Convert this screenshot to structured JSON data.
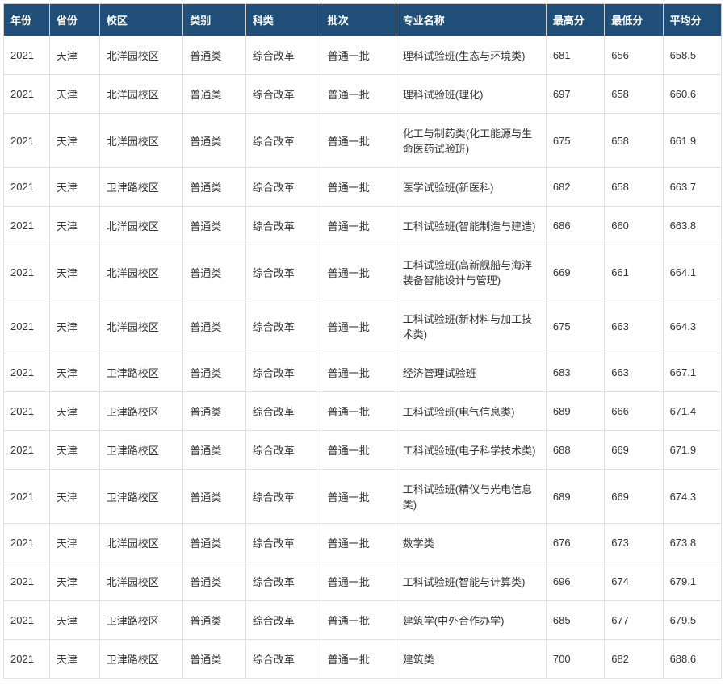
{
  "table": {
    "header_bg_color": "#1f4e79",
    "header_text_color": "#ffffff",
    "cell_bg_color": "#ffffff",
    "cell_text_color": "#333333",
    "border_color": "#e0e0e0",
    "header_font_size": 13,
    "cell_font_size": 13,
    "columns": [
      {
        "key": "year",
        "label": "年份",
        "width": 55
      },
      {
        "key": "province",
        "label": "省份",
        "width": 60
      },
      {
        "key": "campus",
        "label": "校区",
        "width": 100
      },
      {
        "key": "category",
        "label": "类别",
        "width": 75
      },
      {
        "key": "subject",
        "label": "科类",
        "width": 90
      },
      {
        "key": "batch",
        "label": "批次",
        "width": 90
      },
      {
        "key": "major",
        "label": "专业名称",
        "width": 180
      },
      {
        "key": "high",
        "label": "最高分",
        "width": 70
      },
      {
        "key": "low",
        "label": "最低分",
        "width": 70
      },
      {
        "key": "avg",
        "label": "平均分",
        "width": 70
      }
    ],
    "rows": [
      {
        "year": "2021",
        "province": "天津",
        "campus": "北洋园校区",
        "category": "普通类",
        "subject": "综合改革",
        "batch": "普通一批",
        "major": "理科试验班(生态与环境类)",
        "high": "681",
        "low": "656",
        "avg": "658.5"
      },
      {
        "year": "2021",
        "province": "天津",
        "campus": "北洋园校区",
        "category": "普通类",
        "subject": "综合改革",
        "batch": "普通一批",
        "major": "理科试验班(理化)",
        "high": "697",
        "low": "658",
        "avg": "660.6"
      },
      {
        "year": "2021",
        "province": "天津",
        "campus": "北洋园校区",
        "category": "普通类",
        "subject": "综合改革",
        "batch": "普通一批",
        "major": "化工与制药类(化工能源与生命医药试验班)",
        "high": "675",
        "low": "658",
        "avg": "661.9"
      },
      {
        "year": "2021",
        "province": "天津",
        "campus": "卫津路校区",
        "category": "普通类",
        "subject": "综合改革",
        "batch": "普通一批",
        "major": "医学试验班(新医科)",
        "high": "682",
        "low": "658",
        "avg": "663.7"
      },
      {
        "year": "2021",
        "province": "天津",
        "campus": "北洋园校区",
        "category": "普通类",
        "subject": "综合改革",
        "batch": "普通一批",
        "major": "工科试验班(智能制造与建造)",
        "high": "686",
        "low": "660",
        "avg": "663.8"
      },
      {
        "year": "2021",
        "province": "天津",
        "campus": "北洋园校区",
        "category": "普通类",
        "subject": "综合改革",
        "batch": "普通一批",
        "major": "工科试验班(高新舰船与海洋装备智能设计与管理)",
        "high": "669",
        "low": "661",
        "avg": "664.1"
      },
      {
        "year": "2021",
        "province": "天津",
        "campus": "北洋园校区",
        "category": "普通类",
        "subject": "综合改革",
        "batch": "普通一批",
        "major": "工科试验班(新材料与加工技术类)",
        "high": "675",
        "low": "663",
        "avg": "664.3"
      },
      {
        "year": "2021",
        "province": "天津",
        "campus": "卫津路校区",
        "category": "普通类",
        "subject": "综合改革",
        "batch": "普通一批",
        "major": "经济管理试验班",
        "high": "683",
        "low": "663",
        "avg": "667.1"
      },
      {
        "year": "2021",
        "province": "天津",
        "campus": "卫津路校区",
        "category": "普通类",
        "subject": "综合改革",
        "batch": "普通一批",
        "major": "工科试验班(电气信息类)",
        "high": "689",
        "low": "666",
        "avg": "671.4"
      },
      {
        "year": "2021",
        "province": "天津",
        "campus": "卫津路校区",
        "category": "普通类",
        "subject": "综合改革",
        "batch": "普通一批",
        "major": "工科试验班(电子科学技术类)",
        "high": "688",
        "low": "669",
        "avg": "671.9"
      },
      {
        "year": "2021",
        "province": "天津",
        "campus": "卫津路校区",
        "category": "普通类",
        "subject": "综合改革",
        "batch": "普通一批",
        "major": "工科试验班(精仪与光电信息类)",
        "high": "689",
        "low": "669",
        "avg": "674.3"
      },
      {
        "year": "2021",
        "province": "天津",
        "campus": "北洋园校区",
        "category": "普通类",
        "subject": "综合改革",
        "batch": "普通一批",
        "major": "数学类",
        "high": "676",
        "low": "673",
        "avg": "673.8"
      },
      {
        "year": "2021",
        "province": "天津",
        "campus": "北洋园校区",
        "category": "普通类",
        "subject": "综合改革",
        "batch": "普通一批",
        "major": "工科试验班(智能与计算类)",
        "high": "696",
        "low": "674",
        "avg": "679.1"
      },
      {
        "year": "2021",
        "province": "天津",
        "campus": "卫津路校区",
        "category": "普通类",
        "subject": "综合改革",
        "batch": "普通一批",
        "major": "建筑学(中外合作办学)",
        "high": "685",
        "low": "677",
        "avg": "679.5"
      },
      {
        "year": "2021",
        "province": "天津",
        "campus": "卫津路校区",
        "category": "普通类",
        "subject": "综合改革",
        "batch": "普通一批",
        "major": "建筑类",
        "high": "700",
        "low": "682",
        "avg": "688.6"
      }
    ]
  }
}
